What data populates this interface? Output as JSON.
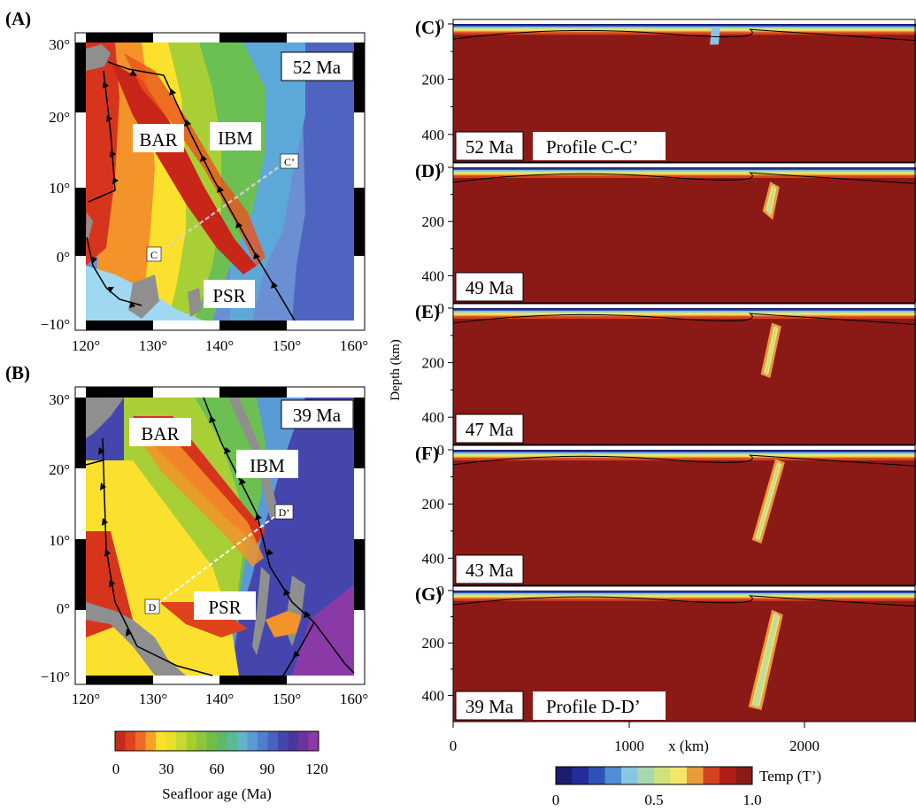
{
  "panels": {
    "A": {
      "letter": "(A)",
      "age": "52 Ma",
      "labels": {
        "bar": "BAR",
        "ibm": "IBM",
        "psr": "PSR"
      },
      "profile_start": "C",
      "profile_end": "C’"
    },
    "B": {
      "letter": "(B)",
      "age": "39 Ma",
      "labels": {
        "bar": "BAR",
        "ibm": "IBM",
        "psr": "PSR"
      },
      "profile_start": "D",
      "profile_end": "D’"
    }
  },
  "map_axes": {
    "lon_ticks": [
      "120°",
      "130°",
      "140°",
      "150°",
      "160°"
    ],
    "lat_ticks": [
      "30°",
      "20°",
      "10°",
      "0°",
      "−10°"
    ]
  },
  "age_colorbar": {
    "label": "Seafloor age (Ma)",
    "ticks": [
      "0",
      "30",
      "60",
      "90",
      "120"
    ],
    "colors": [
      "#c62a1c",
      "#e0421e",
      "#ef6a23",
      "#f7a026",
      "#fde02b",
      "#e8e02c",
      "#c8da2e",
      "#a6cf2c",
      "#8cc63f",
      "#72bd4a",
      "#5fb86a",
      "#5cb89a",
      "#63b4c8",
      "#5a9ad6",
      "#4f7fce",
      "#4a62bf",
      "#4546ad",
      "#4b36a0",
      "#6a339e",
      "#8b3aa6"
    ]
  },
  "profiles": [
    {
      "letter": "(C)",
      "age": "52 Ma",
      "title": "Profile C-C’"
    },
    {
      "letter": "(D)",
      "age": "49 Ma",
      "title": ""
    },
    {
      "letter": "(E)",
      "age": "47 Ma",
      "title": ""
    },
    {
      "letter": "(F)",
      "age": "43 Ma",
      "title": ""
    },
    {
      "letter": "(G)",
      "age": "39 Ma",
      "title": "Profile D-D’"
    }
  ],
  "profile_axes": {
    "depth_label": "Depth (km)",
    "depth_ticks": [
      "0",
      "200",
      "400"
    ],
    "x_label": "x (km)",
    "x_ticks": [
      "0",
      "1000",
      "2000"
    ]
  },
  "temp_colorbar": {
    "label": "Temp (T’)",
    "ticks": [
      "0",
      "0.5",
      "1.0"
    ],
    "colors": [
      "#1c1c6e",
      "#232c9a",
      "#2f52b8",
      "#4f8ed6",
      "#88c6e3",
      "#a8d8b0",
      "#cfe27a",
      "#f5e66a",
      "#eb9b3c",
      "#d3431f",
      "#b01d18",
      "#8b1a17"
    ]
  }
}
